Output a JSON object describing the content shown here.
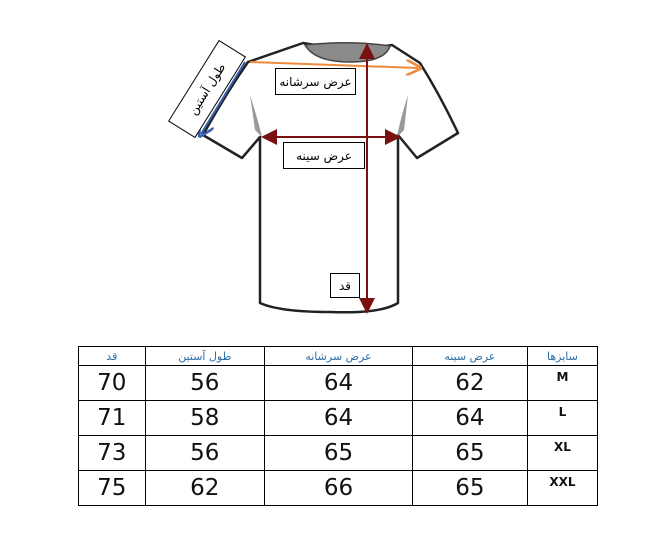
{
  "diagram": {
    "labels": {
      "shoulder_width": "عرض سرشانه",
      "chest_width": "عرض سینه",
      "length": "قد",
      "sleeve_length": "طول آستین"
    },
    "colors": {
      "shoulder_arrow": "#f08a3a",
      "chest_arrow": "#7a1010",
      "length_arrow": "#7a1010",
      "sleeve_arrow": "#3a5fb0",
      "header_text": "#2b6ea8"
    }
  },
  "table": {
    "headers": [
      "قد",
      "طول آستین",
      "عرض سرشانه",
      "عرض سینه",
      "سایزها"
    ],
    "rows": [
      [
        "70",
        "56",
        "64",
        "62",
        "M"
      ],
      [
        "71",
        "58",
        "64",
        "64",
        "L"
      ],
      [
        "73",
        "56",
        "65",
        "65",
        "XL"
      ],
      [
        "75",
        "62",
        "66",
        "65",
        "XXL"
      ]
    ]
  }
}
